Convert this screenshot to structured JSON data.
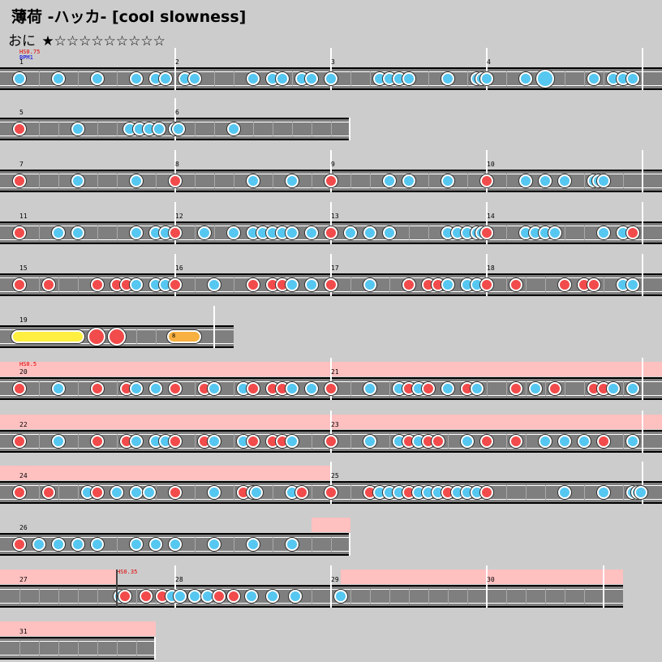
{
  "header": {
    "title": "薄荷 -ハッカ- [cool slowness]",
    "difficulty_label": "おに",
    "stars": "★☆☆☆☆☆☆☆☆☆"
  },
  "commands": {
    "hs75": "HS0.75",
    "bpm1": "BPM1",
    "hs5": "HS0.5",
    "hs35": "HS0.35",
    "balloon_count": "8"
  },
  "measures": [
    "1",
    "2",
    "3",
    "4",
    "5",
    "6",
    "7",
    "8",
    "9",
    "10",
    "11",
    "12",
    "13",
    "14",
    "15",
    "16",
    "17",
    "18",
    "19",
    "20",
    "21",
    "22",
    "23",
    "24",
    "25",
    "26",
    "27",
    "28",
    "29",
    "30",
    "31"
  ],
  "colors": {
    "background": "#cccccc",
    "lane": "#7f7f7f",
    "don": "#f24b4b",
    "ka": "#56c7f0",
    "roll": "#ffef40",
    "balloon": "#f8b040",
    "scroll_band": "#ffc0c0"
  }
}
